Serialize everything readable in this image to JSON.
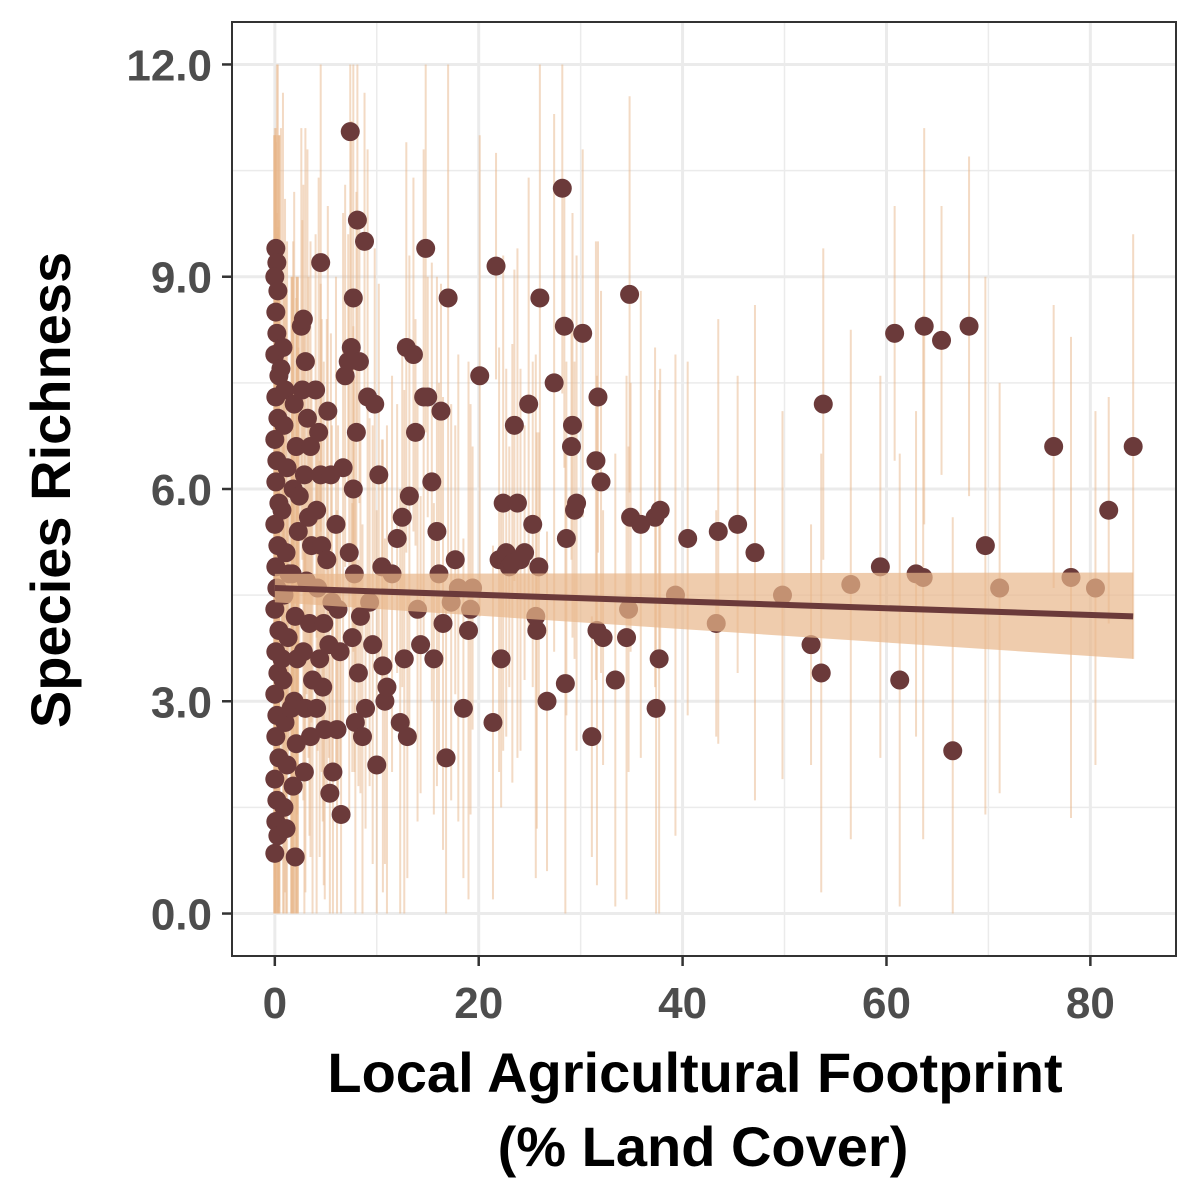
{
  "chart_data": {
    "type": "scatter",
    "xlabel_lines": [
      "Local Agricultural Footprint",
      "(% Land Cover)"
    ],
    "ylabel": "Species Richness",
    "xlim": [
      -4.2,
      88.4
    ],
    "ylim": [
      -0.6,
      12.6
    ],
    "x_ticks": [
      0,
      20,
      40,
      60,
      80
    ],
    "x_tick_labels": [
      "0",
      "20",
      "40",
      "60",
      "80"
    ],
    "y_ticks": [
      0,
      3,
      6,
      9,
      12
    ],
    "y_tick_labels": [
      "0.0",
      "3.0",
      "6.0",
      "9.0",
      "12.0"
    ],
    "grid": true,
    "colors": {
      "points": "#6b3a3a",
      "fit_line": "#6b3a3a",
      "confidence_band": "#e8b68a",
      "error_bars": "#e8b68a",
      "grid": "#ebebeb",
      "panel_border": "#333333"
    },
    "fit": {
      "x": [
        0,
        84.2
      ],
      "y": [
        4.6,
        4.2
      ],
      "ci_lower": [
        4.4,
        3.6
      ],
      "ci_upper": [
        4.8,
        4.82
      ]
    },
    "points_x_near_zero": [
      [
        0.1,
        9.4
      ],
      [
        0.2,
        9.2
      ],
      [
        0.0,
        9.0
      ],
      [
        0.3,
        8.8
      ],
      [
        0.1,
        8.5
      ],
      [
        0.2,
        8.2
      ],
      [
        0.0,
        7.9
      ],
      [
        0.4,
        7.6
      ],
      [
        0.1,
        7.3
      ],
      [
        0.3,
        7.0
      ],
      [
        0.0,
        6.7
      ],
      [
        0.2,
        6.4
      ],
      [
        0.1,
        6.1
      ],
      [
        0.4,
        5.8
      ],
      [
        0.0,
        5.5
      ],
      [
        0.3,
        5.2
      ],
      [
        0.1,
        4.9
      ],
      [
        0.2,
        4.6
      ],
      [
        0.0,
        4.3
      ],
      [
        0.4,
        4.0
      ],
      [
        0.1,
        3.7
      ],
      [
        0.3,
        3.4
      ],
      [
        0.0,
        3.1
      ],
      [
        0.2,
        2.8
      ],
      [
        0.1,
        2.5
      ],
      [
        0.4,
        2.2
      ],
      [
        0.0,
        1.9
      ],
      [
        0.2,
        1.6
      ],
      [
        0.1,
        1.3
      ],
      [
        0.3,
        1.1
      ],
      [
        0.0,
        0.85
      ],
      [
        0.8,
        8.0
      ],
      [
        1.0,
        7.4
      ],
      [
        0.9,
        6.9
      ],
      [
        1.2,
        6.3
      ],
      [
        0.7,
        5.7
      ],
      [
        1.1,
        5.1
      ],
      [
        0.9,
        4.5
      ],
      [
        1.3,
        3.9
      ],
      [
        0.8,
        3.3
      ],
      [
        1.0,
        2.7
      ],
      [
        1.2,
        2.1
      ],
      [
        0.9,
        1.5
      ],
      [
        1.1,
        1.2
      ],
      [
        0.6,
        7.7
      ],
      [
        1.4,
        4.8
      ],
      [
        0.7,
        3.6
      ],
      [
        1.9,
        7.2
      ],
      [
        2.1,
        6.6
      ],
      [
        1.8,
        6.0
      ],
      [
        2.3,
        5.4
      ],
      [
        1.7,
        4.8
      ],
      [
        2.0,
        4.2
      ],
      [
        2.2,
        3.6
      ],
      [
        1.9,
        3.0
      ],
      [
        2.1,
        2.4
      ],
      [
        1.8,
        1.8
      ],
      [
        2.0,
        0.8
      ],
      [
        2.4,
        5.9
      ],
      [
        1.6,
        2.9
      ]
    ],
    "points": [
      [
        2.6,
        8.3
      ],
      [
        2.8,
        8.4
      ],
      [
        3.0,
        7.8
      ],
      [
        2.7,
        7.4
      ],
      [
        3.2,
        7.0
      ],
      [
        3.5,
        6.6
      ],
      [
        2.9,
        6.2
      ],
      [
        3.3,
        5.6
      ],
      [
        3.6,
        5.2
      ],
      [
        3.1,
        4.7
      ],
      [
        3.4,
        4.1
      ],
      [
        2.8,
        3.7
      ],
      [
        3.7,
        3.3
      ],
      [
        3.0,
        2.9
      ],
      [
        3.5,
        2.5
      ],
      [
        2.9,
        2.0
      ],
      [
        4.0,
        7.4
      ],
      [
        4.3,
        6.8
      ],
      [
        4.5,
        6.2
      ],
      [
        4.1,
        5.7
      ],
      [
        4.6,
        5.2
      ],
      [
        4.2,
        4.6
      ],
      [
        4.8,
        4.1
      ],
      [
        4.4,
        3.6
      ],
      [
        4.7,
        3.2
      ],
      [
        4.1,
        2.9
      ],
      [
        4.9,
        2.6
      ],
      [
        4.5,
        9.2
      ],
      [
        5.2,
        7.1
      ],
      [
        5.5,
        6.2
      ],
      [
        5.1,
        5.0
      ],
      [
        5.6,
        4.4
      ],
      [
        5.3,
        3.8
      ],
      [
        5.7,
        2.0
      ],
      [
        5.4,
        1.7
      ],
      [
        6.0,
        5.5
      ],
      [
        6.2,
        4.3
      ],
      [
        6.4,
        3.7
      ],
      [
        6.1,
        2.6
      ],
      [
        6.5,
        1.4
      ],
      [
        6.7,
        6.3
      ],
      [
        6.9,
        7.6
      ],
      [
        7.2,
        7.8
      ],
      [
        7.5,
        8.0
      ],
      [
        7.7,
        6.0
      ],
      [
        7.3,
        5.1
      ],
      [
        7.8,
        4.8
      ],
      [
        7.6,
        3.9
      ],
      [
        7.9,
        2.7
      ],
      [
        7.4,
        11.05
      ],
      [
        7.7,
        8.7
      ],
      [
        8.1,
        9.8
      ],
      [
        8.3,
        7.8
      ],
      [
        8.0,
        6.8
      ],
      [
        8.4,
        4.2
      ],
      [
        8.2,
        3.4
      ],
      [
        8.6,
        2.5
      ],
      [
        8.8,
        9.5
      ],
      [
        9.1,
        7.3
      ],
      [
        9.3,
        4.4
      ],
      [
        8.9,
        2.9
      ],
      [
        9.6,
        3.8
      ],
      [
        9.8,
        7.2
      ],
      [
        10.0,
        2.1
      ],
      [
        10.2,
        6.2
      ],
      [
        10.5,
        4.9
      ],
      [
        10.6,
        3.5
      ],
      [
        10.8,
        3.0
      ],
      [
        11.0,
        3.2
      ],
      [
        11.5,
        4.8
      ],
      [
        12.0,
        5.3
      ],
      [
        12.3,
        2.7
      ],
      [
        12.5,
        5.6
      ],
      [
        12.7,
        3.6
      ],
      [
        12.9,
        8.0
      ],
      [
        13.0,
        2.5
      ],
      [
        13.2,
        5.9
      ],
      [
        13.6,
        7.9
      ],
      [
        13.8,
        6.8
      ],
      [
        14.0,
        4.3
      ],
      [
        14.3,
        3.8
      ],
      [
        14.6,
        7.3
      ],
      [
        14.8,
        9.4
      ],
      [
        15.0,
        7.3
      ],
      [
        15.4,
        6.1
      ],
      [
        15.6,
        3.6
      ],
      [
        15.9,
        5.4
      ],
      [
        16.1,
        4.8
      ],
      [
        16.3,
        7.1
      ],
      [
        16.5,
        4.1
      ],
      [
        16.8,
        2.2
      ],
      [
        17.0,
        8.7
      ],
      [
        17.3,
        4.4
      ],
      [
        17.7,
        5.0
      ],
      [
        18.0,
        4.6
      ],
      [
        18.5,
        2.9
      ],
      [
        19.0,
        4.0
      ],
      [
        19.2,
        4.3
      ],
      [
        19.4,
        4.6
      ],
      [
        20.1,
        7.6
      ],
      [
        21.4,
        2.7
      ],
      [
        21.7,
        9.15
      ],
      [
        22.0,
        5.0
      ],
      [
        22.2,
        3.6
      ],
      [
        22.4,
        5.8
      ],
      [
        22.7,
        5.1
      ],
      [
        23.0,
        4.9
      ],
      [
        23.3,
        4.95
      ],
      [
        23.5,
        6.9
      ],
      [
        23.8,
        5.8
      ],
      [
        24.1,
        5.0
      ],
      [
        24.5,
        5.1
      ],
      [
        24.9,
        7.2
      ],
      [
        25.3,
        5.5
      ],
      [
        25.6,
        4.2
      ],
      [
        25.7,
        4.0
      ],
      [
        25.9,
        4.9
      ],
      [
        26.0,
        8.7
      ],
      [
        26.7,
        3.0
      ],
      [
        27.4,
        7.5
      ],
      [
        28.2,
        10.25
      ],
      [
        28.4,
        8.3
      ],
      [
        28.5,
        3.25
      ],
      [
        28.6,
        5.3
      ],
      [
        29.1,
        6.6
      ],
      [
        29.2,
        6.9
      ],
      [
        29.4,
        5.7
      ],
      [
        29.6,
        5.8
      ],
      [
        30.2,
        8.2
      ],
      [
        31.1,
        2.5
      ],
      [
        31.5,
        6.4
      ],
      [
        31.7,
        7.3
      ],
      [
        31.6,
        4.0
      ],
      [
        32.0,
        6.1
      ],
      [
        32.2,
        3.9
      ],
      [
        33.4,
        3.3
      ],
      [
        34.7,
        4.3
      ],
      [
        34.5,
        3.9
      ],
      [
        34.8,
        8.75
      ],
      [
        34.9,
        5.6
      ],
      [
        35.9,
        5.5
      ],
      [
        37.3,
        5.6
      ],
      [
        37.7,
        3.6
      ],
      [
        37.4,
        2.9
      ],
      [
        37.8,
        5.7
      ],
      [
        39.3,
        4.5
      ],
      [
        40.5,
        5.3
      ],
      [
        43.3,
        4.1
      ],
      [
        43.5,
        5.4
      ],
      [
        45.4,
        5.5
      ],
      [
        47.1,
        5.1
      ],
      [
        49.8,
        4.5
      ],
      [
        52.6,
        3.8
      ],
      [
        53.6,
        3.4
      ],
      [
        53.8,
        7.2
      ],
      [
        56.5,
        4.65
      ],
      [
        59.4,
        4.9
      ],
      [
        60.8,
        8.2
      ],
      [
        61.3,
        3.3
      ],
      [
        62.9,
        4.8
      ],
      [
        63.6,
        4.75
      ],
      [
        63.7,
        8.3
      ],
      [
        65.4,
        8.1
      ],
      [
        66.5,
        2.3
      ],
      [
        68.1,
        8.3
      ],
      [
        69.7,
        5.2
      ],
      [
        71.1,
        4.6
      ],
      [
        76.4,
        6.6
      ],
      [
        78.1,
        4.75
      ],
      [
        80.5,
        4.6
      ],
      [
        81.8,
        5.7
      ],
      [
        84.2,
        6.6
      ]
    ]
  }
}
